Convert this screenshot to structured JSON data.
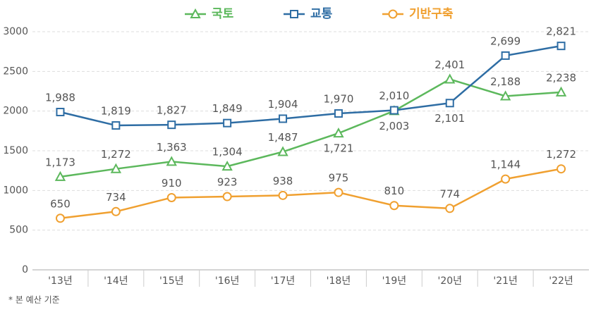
{
  "chart_data": {
    "type": "line",
    "categories": [
      "'13년",
      "'14년",
      "'15년",
      "'16년",
      "'17년",
      "'18년",
      "'19년",
      "'20년",
      "'21년",
      "'22년"
    ],
    "series": [
      {
        "name": "국토",
        "color": "#5cb85c",
        "marker": "triangle",
        "values": [
          1173,
          1272,
          1363,
          1304,
          1487,
          1721,
          2003,
          2401,
          2188,
          2238
        ],
        "value_labels": [
          "1,173",
          "1,272",
          "1,363",
          "1,304",
          "1,487",
          "1,721",
          "2,003",
          "2,401",
          "2,188",
          "2,238"
        ]
      },
      {
        "name": "교통",
        "color": "#2e6da4",
        "marker": "square",
        "values": [
          1988,
          1819,
          1827,
          1849,
          1904,
          1970,
          2010,
          2101,
          2699,
          2821
        ],
        "value_labels": [
          "1,988",
          "1,819",
          "1,827",
          "1,849",
          "1,904",
          "1,970",
          "2,010",
          "2,101",
          "2,699",
          "2,821"
        ]
      },
      {
        "name": "기반구축",
        "color": "#f0a030",
        "marker": "circle",
        "values": [
          650,
          734,
          910,
          923,
          938,
          975,
          810,
          774,
          1144,
          1272
        ],
        "value_labels": [
          "650",
          "734",
          "910",
          "923",
          "938",
          "975",
          "810",
          "774",
          "1,144",
          "1,272"
        ]
      }
    ],
    "ylim": [
      0,
      3000
    ],
    "yticks": [
      0,
      500,
      1000,
      1500,
      2000,
      2500,
      3000
    ],
    "grid": true,
    "legend": "top",
    "note": "* 본 예산 기준"
  }
}
